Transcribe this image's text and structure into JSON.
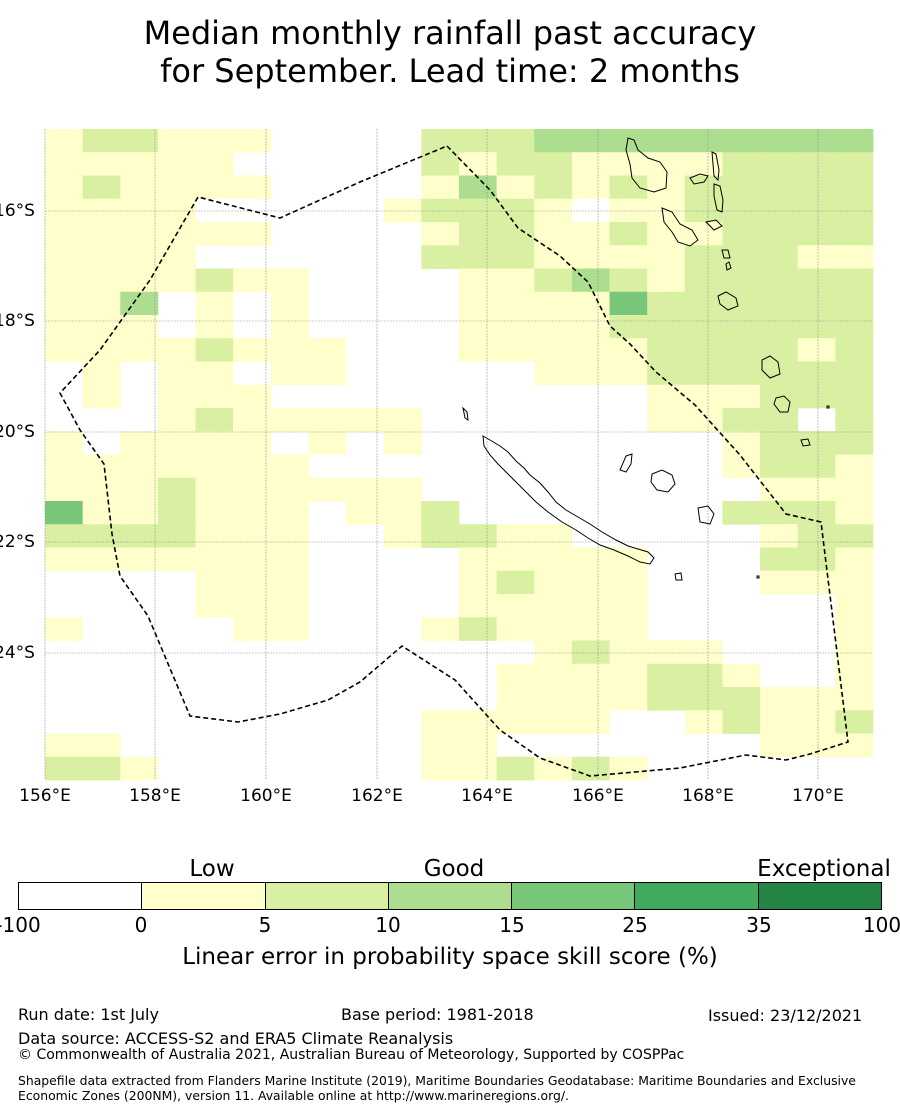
{
  "title_line1": "Median monthly rainfall past accuracy",
  "title_line2": "for September. Lead time: 2 months",
  "map": {
    "x_ticks": [
      "156°E",
      "158°E",
      "160°E",
      "162°E",
      "164°E",
      "166°E",
      "168°E",
      "170°E"
    ],
    "y_ticks": [
      "16°S",
      "18°S",
      "20°S",
      "22°S",
      "24°S"
    ],
    "colors": [
      "#ffffff",
      "#ffffcc",
      "#d9f0a3",
      "#addd8e",
      "#78c679",
      "#41ab5d",
      "#238443"
    ],
    "grid_rows": [
      "1221110000222333333333",
      "1111100000212211112222",
      "1211110000131212122222",
      "1111000001222101122222",
      "1111110000122112112222",
      "1111000000222111122211",
      "1111211000011232122222",
      "1130101000011114222222",
      "1110101000011112222222",
      "1111211100011111222212",
      "0101101100000111222222",
      "0101110000000000111222",
      "0001211111000000112202",
      "1011110101000000001222",
      "1111111000000000001221",
      "1112111111000000000111",
      "4112111011200000002221",
      "2222111001221100000122",
      "1111111000011111000221",
      "0000111000012111000111",
      "0000111000011111000001",
      "1000011000121111000001",
      "0000000000000121110001",
      "0000000000001111221001",
      "0000000000001111222111",
      "0000000000111110012112",
      "1100000000110000000111",
      "2210000000112121000000"
    ]
  },
  "colorbar": {
    "categories": [
      "Low",
      "Good",
      "Exceptional"
    ],
    "ticks": [
      "-100",
      "0",
      "5",
      "10",
      "15",
      "25",
      "35",
      "100"
    ],
    "label": "Linear error in probability space skill score (%)"
  },
  "footer": {
    "run_date": "Run date: 1st July",
    "base_period": "Base period: 1981-2018",
    "issued": "Issued: 23/12/2021",
    "data_source": "Data source: ACCESS-S2 and ERA5 Climate Reanalysis",
    "copyright": "© Commonwealth of Australia 2021, Australian Bureau of Meteorology, Supported by COSPPac",
    "shapefile": "Shapefile data extracted from Flanders Marine Institute (2019), Maritime Boundaries Geodatabase: Maritime Boundaries and Exclusive Economic Zones (200NM), version 11. Available online at http://www.marineregions.org/."
  }
}
